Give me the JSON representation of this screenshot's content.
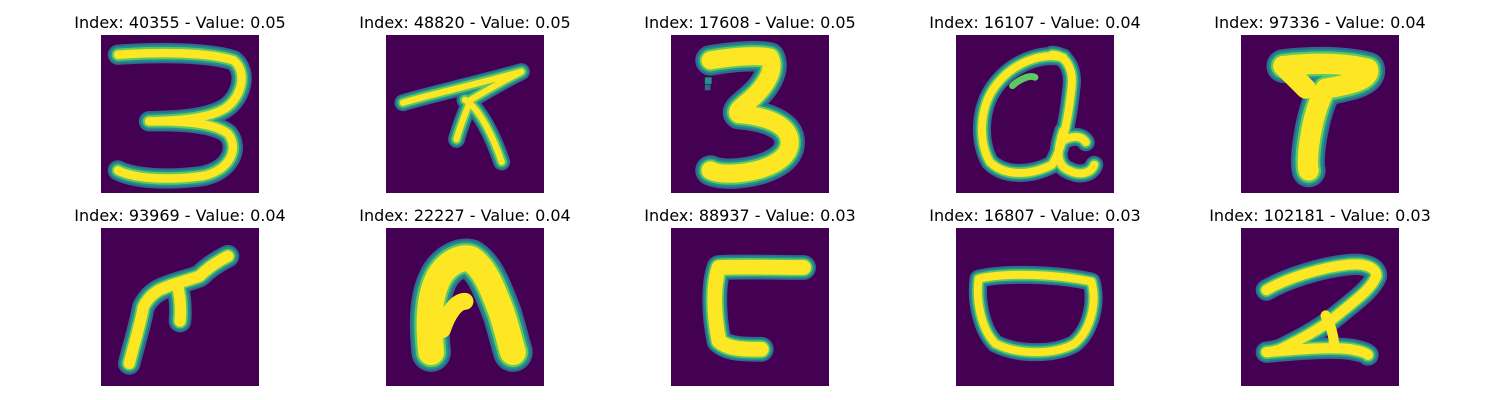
{
  "figure": {
    "panels": [
      {
        "title": "Index: 40355 - Value: 0.05",
        "depicts": "3"
      },
      {
        "title": "Index: 48820 - Value: 0.05",
        "depicts": "7"
      },
      {
        "title": "Index: 17608 - Value: 0.05",
        "depicts": "3"
      },
      {
        "title": "Index: 16107 - Value: 0.04",
        "depicts": "a"
      },
      {
        "title": "Index: 97336 - Value: 0.04",
        "depicts": "7"
      },
      {
        "title": "Index: 93969 - Value: 0.04",
        "depicts": "f"
      },
      {
        "title": "Index: 22227 - Value: 0.04",
        "depicts": "n"
      },
      {
        "title": "Index: 88937 - Value: 0.03",
        "depicts": "c"
      },
      {
        "title": "Index: 16807 - Value: 0.03",
        "depicts": "o"
      },
      {
        "title": "Index: 102181 - Value: 0.03",
        "depicts": "2"
      }
    ],
    "colors": {
      "background": "#440154",
      "stroke": "#fde725",
      "edge": "#21918c"
    }
  }
}
